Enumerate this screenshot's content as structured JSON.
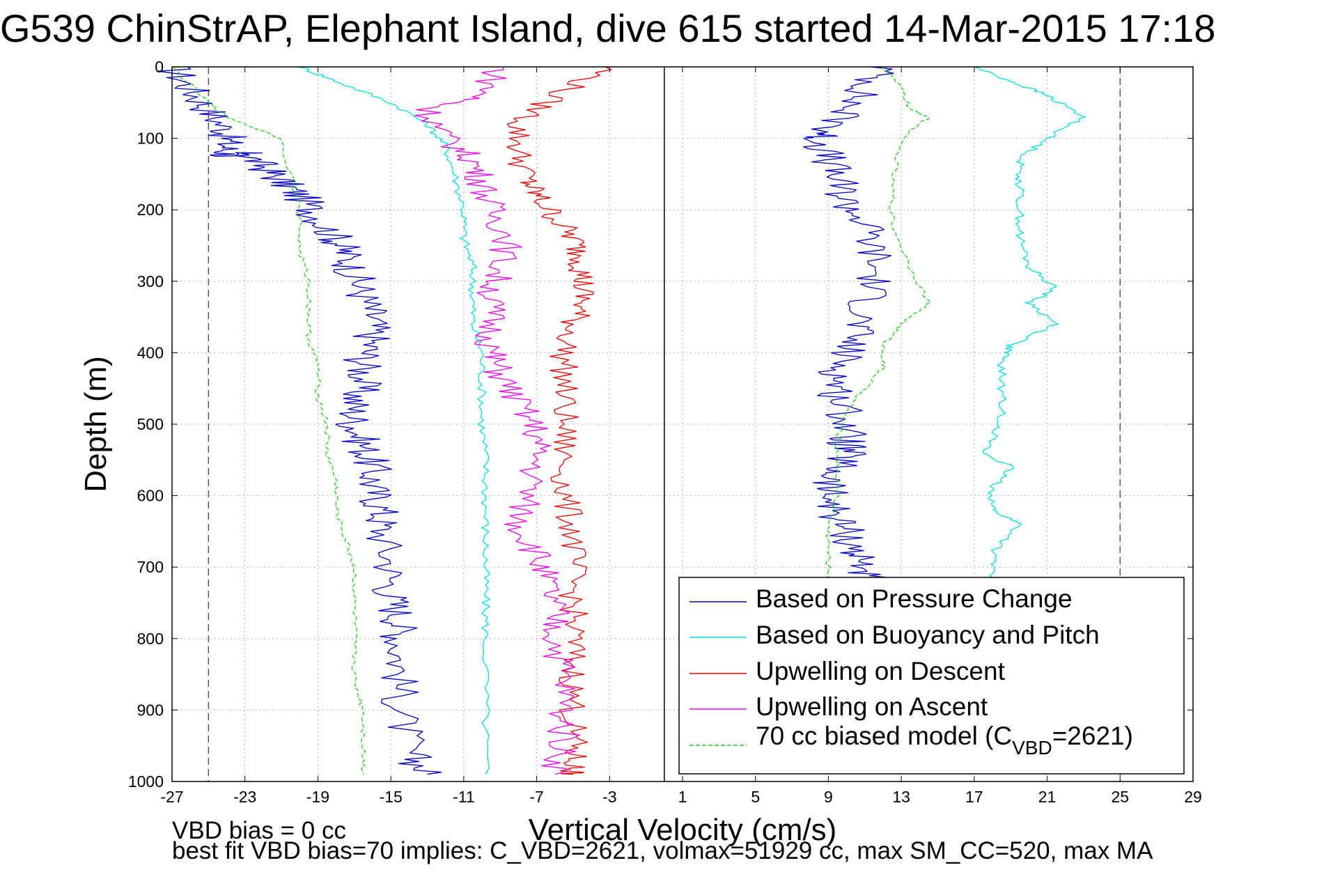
{
  "chart_data": {
    "type": "line",
    "title": "G539 ChinStrAP, Elephant Island, dive 615 started 14-Mar-2015 17:18",
    "xlabel": "Vertical Velocity (cm/s)",
    "ylabel": "Depth (m)",
    "xlim": [
      -27,
      29
    ],
    "ylim": [
      0,
      1000
    ],
    "y_reversed": true,
    "x_ticks": [
      -27,
      -23,
      -19,
      -15,
      -11,
      -7,
      -3,
      1,
      5,
      9,
      13,
      17,
      21,
      25,
      29
    ],
    "y_ticks": [
      0,
      100,
      200,
      300,
      400,
      500,
      600,
      700,
      800,
      900,
      1000
    ],
    "grid": true,
    "reference_lines": [
      {
        "x": -25,
        "style": "dashed",
        "color": "#555555"
      },
      {
        "x": 25,
        "style": "dashed",
        "color": "#555555"
      },
      {
        "x": 0,
        "style": "solid",
        "color": "#000000"
      }
    ],
    "legend_position": "bottom-right",
    "series": [
      {
        "name": "Based on Pressure Change",
        "color": "#0000cc",
        "style": "solid",
        "segments": [
          {
            "x": [
              -27,
              -26,
              -25,
              -24,
              -24,
              -24,
              -23,
              -22,
              -21,
              -20,
              -19,
              -18,
              -17.5,
              -17,
              -16.5,
              -16,
              -16,
              -16.5,
              -16.5,
              -17,
              -17,
              -16.5,
              -16,
              -16,
              -15.5,
              -15.5,
              -15,
              -15,
              -14.5,
              -14.5,
              -14.5,
              -14.5,
              -14,
              -13
            ],
            "y": [
              0,
              30,
              60,
              90,
              110,
              125,
              120,
              140,
              160,
              180,
              210,
              240,
              260,
              290,
              320,
              350,
              380,
              410,
              440,
              470,
              500,
              530,
              560,
              590,
              620,
              650,
              700,
              740,
              770,
              800,
              850,
              900,
              960,
              990
            ]
          },
          {
            "x": [
              12,
              11,
              10,
              9,
              8.5,
              9,
              9.5,
              10,
              11,
              11.5,
              11.5,
              11,
              10.5,
              10,
              9.5,
              9.5,
              10,
              10,
              10,
              9.5,
              9,
              9,
              9.5,
              10,
              10.5,
              11,
              11
            ],
            "y": [
              0,
              30,
              60,
              90,
              100,
              130,
              160,
              190,
              220,
              260,
              300,
              340,
              370,
              400,
              430,
              460,
              490,
              520,
              540,
              560,
              580,
              600,
              630,
              650,
              680,
              700,
              720
            ]
          }
        ]
      },
      {
        "name": "Based on Buoyancy and Pitch",
        "color": "#00dddd",
        "style": "solid",
        "segments": [
          {
            "x": [
              -20,
              -18,
              -15,
              -13,
              -12,
              -11.5,
              -11,
              -11,
              -10.5,
              -10.5,
              -10.5,
              -10,
              -10,
              -10,
              -9.8,
              -9.8,
              -9.8,
              -9.8,
              -9.8,
              -9.8,
              -9.8,
              -9.8
            ],
            "y": [
              0,
              20,
              50,
              80,
              110,
              150,
              200,
              240,
              280,
              320,
              360,
              400,
              450,
              500,
              550,
              600,
              650,
              700,
              750,
              800,
              900,
              990
            ]
          },
          {
            "x": [
              17,
              19,
              21,
              23,
              21,
              19.5,
              19.5,
              19.5,
              19.5,
              20,
              21.5,
              20,
              21.5,
              19,
              18.5,
              18.5,
              18.5,
              17.5,
              19,
              18,
              18,
              19.5,
              18,
              18
            ],
            "y": [
              0,
              20,
              40,
              70,
              100,
              130,
              160,
              200,
              240,
              280,
              310,
              330,
              360,
              390,
              410,
              450,
              500,
              540,
              560,
              590,
              620,
              640,
              680,
              720
            ]
          }
        ]
      },
      {
        "name": "Upwelling on Descent",
        "color": "#ee0000",
        "style": "solid",
        "segments": [
          {
            "x": [
              -3,
              -6,
              -8,
              -8,
              -7.5,
              -7,
              -6,
              -5,
              -4.5,
              -4.5,
              -4.5,
              -5,
              -5.5,
              -5.5,
              -5.5,
              -5.5,
              -5.5,
              -5,
              -5,
              -5,
              -5,
              -5,
              -5,
              -5,
              -5,
              -5
            ],
            "y": [
              0,
              40,
              80,
              120,
              160,
              180,
              210,
              240,
              270,
              300,
              330,
              360,
              400,
              450,
              500,
              550,
              600,
              650,
              700,
              750,
              800,
              850,
              900,
              950,
              980,
              990
            ]
          }
        ]
      },
      {
        "name": "Upwelling on Ascent",
        "color": "#ee00ee",
        "style": "solid",
        "segments": [
          {
            "x": [
              -9,
              -10,
              -13,
              -12,
              -10.5,
              -10,
              -9.5,
              -8.5,
              -9,
              -9.5,
              -9.5,
              -9.5,
              -9,
              -8,
              -7,
              -7,
              -7.5,
              -8,
              -7,
              -6.5,
              -6,
              -6,
              -5.5,
              -5.5,
              -5.5,
              -6
            ],
            "y": [
              0,
              40,
              60,
              100,
              130,
              160,
              200,
              240,
              280,
              320,
              360,
              400,
              430,
              470,
              510,
              550,
              600,
              640,
              680,
              720,
              760,
              800,
              850,
              900,
              950,
              990
            ]
          }
        ]
      },
      {
        "name": "70 cc biased model (C_VBD=2621)",
        "color": "#22cc22",
        "style": "dashed",
        "segments": [
          {
            "x": [
              -27,
              -25,
              -24,
              -21,
              -20,
              -20,
              -19.5,
              -19.5,
              -19.5,
              -19,
              -19,
              -18.5,
              -18.5,
              -18,
              -18,
              -17.5,
              -17,
              -17,
              -17,
              -17,
              -17,
              -16.5,
              -16.5,
              -16.5
            ],
            "y": [
              0,
              50,
              70,
              100,
              200,
              260,
              300,
              340,
              380,
              420,
              460,
              500,
              540,
              580,
              620,
              660,
              700,
              740,
              780,
              820,
              860,
              900,
              950,
              990
            ]
          },
          {
            "x": [
              12,
              13,
              13.5,
              14.5,
              13,
              12.5,
              12.5,
              13.5,
              14.5,
              13,
              12,
              12,
              11,
              10,
              9.5,
              9.5,
              9.5,
              9,
              9,
              9
            ],
            "y": [
              0,
              30,
              60,
              70,
              100,
              160,
              220,
              280,
              330,
              360,
              390,
              420,
              450,
              480,
              520,
              560,
              600,
              640,
              680,
              720
            ]
          }
        ]
      }
    ],
    "legend": [
      {
        "label": "Based on Pressure Change",
        "color": "#0000cc",
        "style": "solid"
      },
      {
        "label": "Based on Buoyancy and Pitch",
        "color": "#00dddd",
        "style": "solid"
      },
      {
        "label": "Upwelling on Descent",
        "color": "#ee0000",
        "style": "solid"
      },
      {
        "label": "Upwelling on Ascent",
        "color": "#ee00ee",
        "style": "solid"
      },
      {
        "label": "70 cc biased model (C",
        "sub": "VBD",
        "suffix": "=2621)",
        "color": "#22cc22",
        "style": "dashed"
      }
    ]
  },
  "notes": {
    "line1": "VBD bias = 0 cc",
    "line2": "best fit VBD bias=70 implies: C_VBD=2621, volmax=51929 cc, max SM_CC=520, max MA"
  }
}
